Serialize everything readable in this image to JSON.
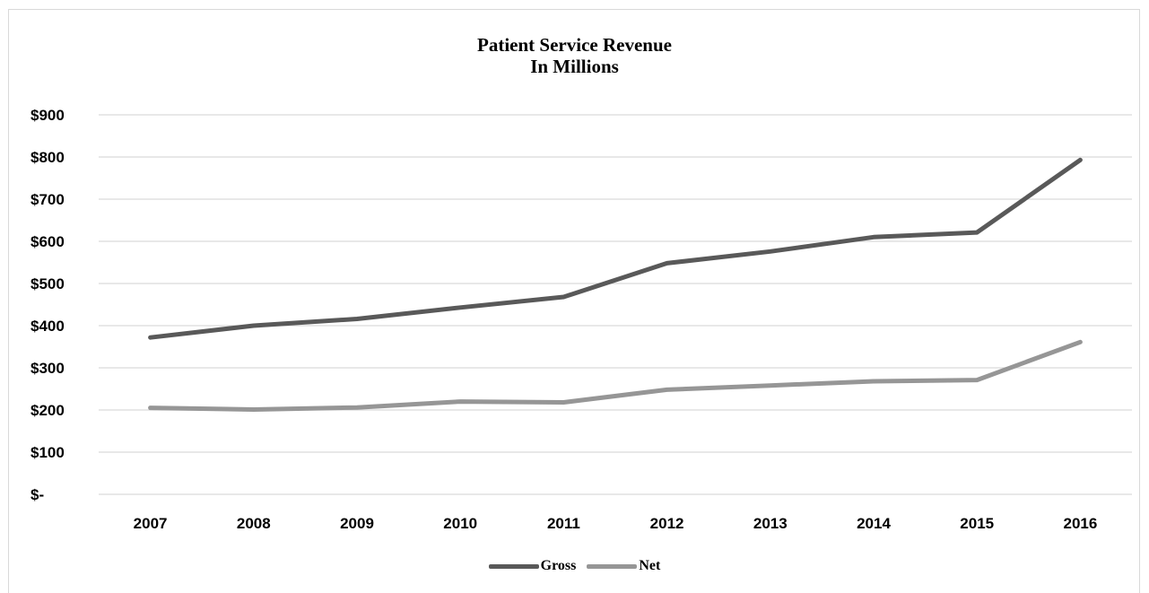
{
  "chart_data": {
    "type": "line",
    "title": "Patient Service Revenue",
    "subtitle": "In Millions",
    "x": [
      "2007",
      "2008",
      "2009",
      "2010",
      "2011",
      "2012",
      "2013",
      "2014",
      "2015",
      "2016"
    ],
    "ylim": [
      0,
      900
    ],
    "yticks": [
      0,
      100,
      200,
      300,
      400,
      500,
      600,
      700,
      800,
      900
    ],
    "ytick_labels": [
      "$-",
      "$100",
      "$200",
      "$300",
      "$400",
      "$500",
      "$600",
      "$700",
      "$800",
      "$900"
    ],
    "grid": true,
    "legend_position": "bottom",
    "series": [
      {
        "name": "Gross",
        "color": "#595959",
        "values": [
          372,
          400,
          416,
          443,
          468,
          548,
          576,
          610,
          621,
          793
        ]
      },
      {
        "name": "Net",
        "color": "#969696",
        "values": [
          205,
          201,
          206,
          220,
          218,
          248,
          258,
          268,
          271,
          361
        ]
      }
    ]
  }
}
